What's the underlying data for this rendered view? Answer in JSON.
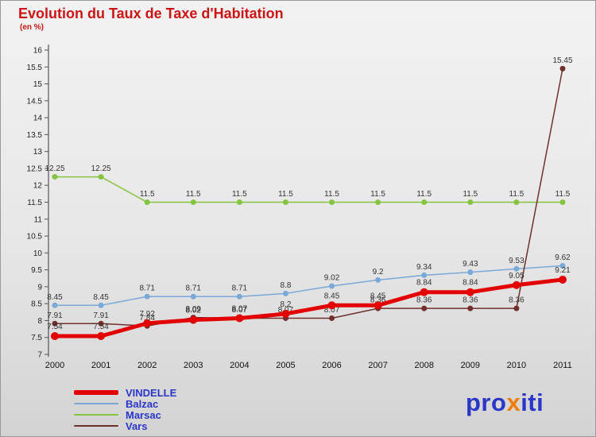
{
  "title": "Evolution du Taux de Taxe d'Habitation",
  "subtitle": "(en %)",
  "colors": {
    "title": "#cc1414",
    "axis": "#555555",
    "tick_text": "#222222",
    "data_label": "#333333"
  },
  "chart_data": {
    "type": "line",
    "x": [
      "2000",
      "2001",
      "2002",
      "2003",
      "2004",
      "2005",
      "2006",
      "2007",
      "2008",
      "2009",
      "2010",
      "2011"
    ],
    "ylim": [
      7,
      16
    ],
    "ytick_step": 0.5,
    "grid": false,
    "legend_position": "bottom-left",
    "series": [
      {
        "name": "Marsac",
        "color": "#85c440",
        "line_width": 1.5,
        "marker_radius": 3.5,
        "values": [
          12.25,
          12.25,
          11.5,
          11.5,
          11.5,
          11.5,
          11.5,
          11.5,
          11.5,
          11.5,
          11.5,
          11.5
        ]
      },
      {
        "name": "Balzac",
        "color": "#7aa9d8",
        "line_width": 1.5,
        "marker_radius": 3.5,
        "values": [
          8.45,
          8.45,
          8.71,
          8.71,
          8.71,
          8.8,
          9.02,
          9.2,
          9.34,
          9.43,
          9.53,
          9.62
        ]
      },
      {
        "name": "Vars",
        "color": "#71302e",
        "line_width": 1.5,
        "marker_radius": 3.5,
        "values": [
          7.91,
          7.91,
          7.84,
          8.09,
          8.07,
          8.07,
          8.07,
          8.36,
          8.36,
          8.36,
          8.36,
          15.45
        ]
      },
      {
        "name": "VINDELLE",
        "color": "#e20000",
        "line_width": 5,
        "marker_radius": 5,
        "values": [
          7.54,
          7.54,
          7.92,
          8.02,
          8.07,
          8.2,
          8.45,
          8.45,
          8.84,
          8.84,
          9.05,
          9.21
        ]
      }
    ]
  },
  "legend": {
    "text_color": "#2a36c8",
    "items": [
      {
        "label": "VINDELLE"
      },
      {
        "label": "Balzac"
      },
      {
        "label": "Marsac"
      },
      {
        "label": "Vars"
      }
    ]
  },
  "logo": {
    "part1": "pro",
    "x": "x",
    "part2": "iti",
    "blue": "#2a36c8",
    "orange": "#f07d00"
  }
}
